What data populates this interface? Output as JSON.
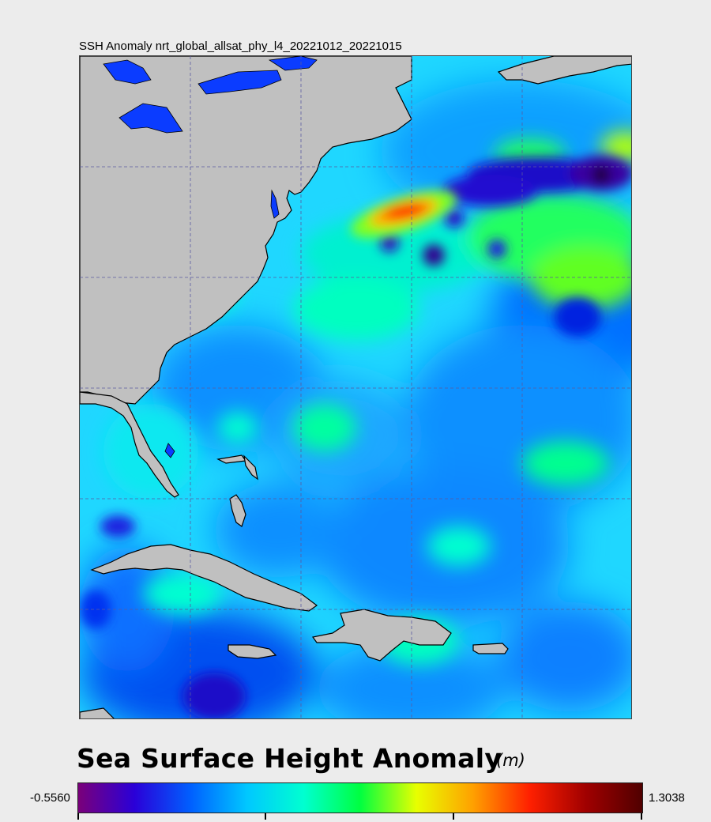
{
  "map": {
    "title": "SSH Anomaly nrt_global_allsat_phy_l4_20221012_20221015"
  },
  "legend": {
    "title": "Sea Surface Height Anomaly",
    "unit": "(m)",
    "min_label": "-0.5560",
    "max_label": "1.3038",
    "min_value": -0.556,
    "max_value": 1.3038
  },
  "colors": {
    "land": "#c0c0c0",
    "lakes": "#0b3cff",
    "background": "#ececec",
    "ocean_base": "#1fd7ff",
    "gridlines": "#5a5aa0",
    "colorbar_stops": [
      "#7a007a",
      "#2a00d8",
      "#0060ff",
      "#00c8ff",
      "#00ffd0",
      "#00ff40",
      "#e8ff00",
      "#ffa000",
      "#ff2000",
      "#a00000",
      "#500000"
    ]
  }
}
